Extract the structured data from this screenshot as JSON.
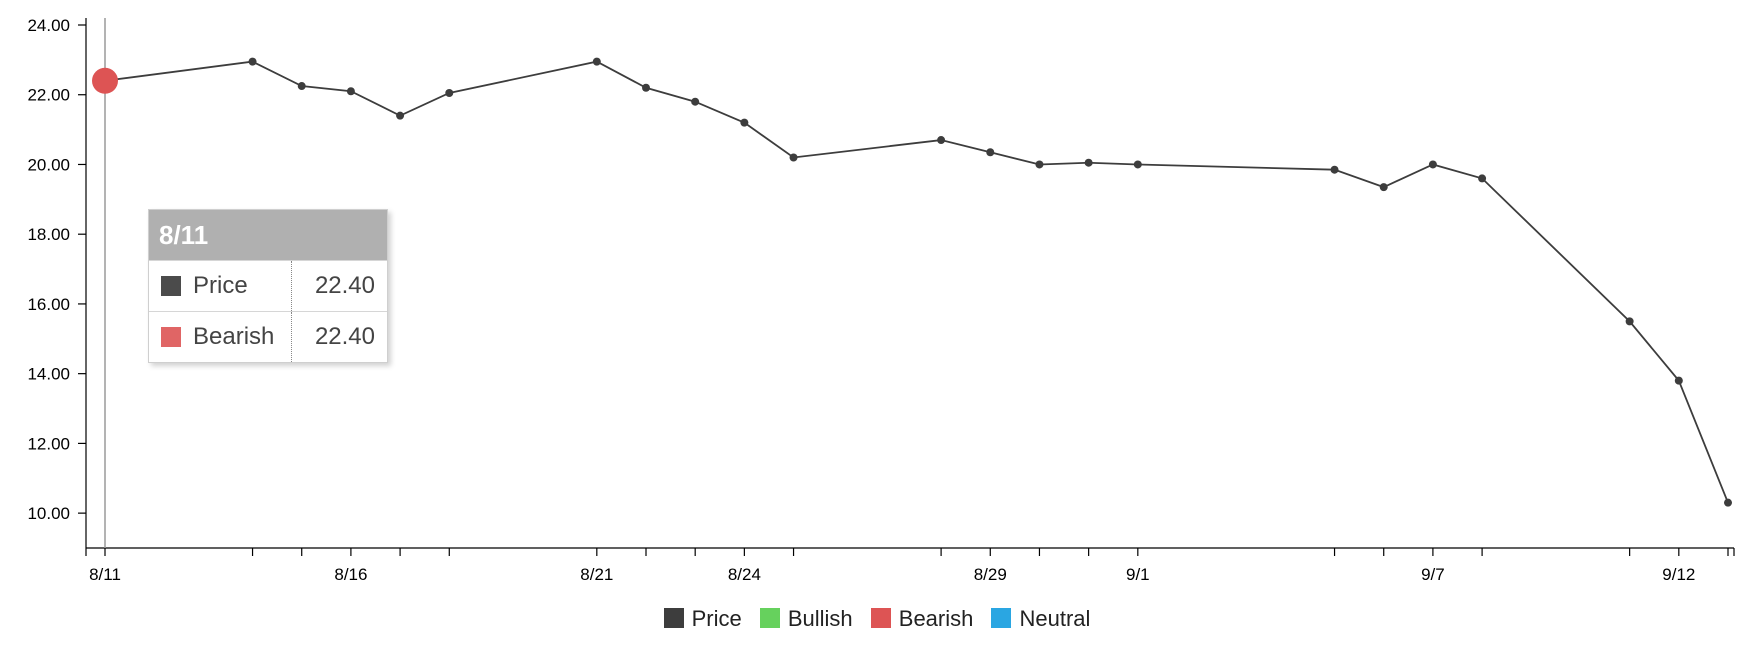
{
  "chart_data": {
    "type": "line",
    "x_labels": [
      "8/11",
      "8/16",
      "8/21",
      "8/24",
      "8/29",
      "9/1",
      "9/7",
      "9/12"
    ],
    "y_tick_labels": [
      "10.00",
      "12.00",
      "14.00",
      "16.00",
      "18.00",
      "20.00",
      "22.00",
      "24.00"
    ],
    "ylim": [
      9,
      24.2
    ],
    "xlim": [
      "8/11",
      "9/13"
    ],
    "x_tick_dates": [
      "8/11",
      "8/14",
      "8/15",
      "8/16",
      "8/17",
      "8/18",
      "8/21",
      "8/22",
      "8/23",
      "8/24",
      "8/25",
      "8/28",
      "8/29",
      "8/30",
      "8/31",
      "9/1",
      "9/5",
      "9/6",
      "9/7",
      "9/8",
      "9/11",
      "9/12",
      "9/13"
    ],
    "series": [
      {
        "name": "Price",
        "color": "#3d3d3d",
        "points": [
          {
            "x": "8/11",
            "y": 22.4
          },
          {
            "x": "8/14",
            "y": 22.95
          },
          {
            "x": "8/15",
            "y": 22.25
          },
          {
            "x": "8/16",
            "y": 22.1
          },
          {
            "x": "8/17",
            "y": 21.4
          },
          {
            "x": "8/18",
            "y": 22.05
          },
          {
            "x": "8/21",
            "y": 22.95
          },
          {
            "x": "8/22",
            "y": 22.2
          },
          {
            "x": "8/23",
            "y": 21.8
          },
          {
            "x": "8/24",
            "y": 21.2
          },
          {
            "x": "8/25",
            "y": 20.2
          },
          {
            "x": "8/28",
            "y": 20.7
          },
          {
            "x": "8/29",
            "y": 20.35
          },
          {
            "x": "8/30",
            "y": 20.0
          },
          {
            "x": "8/31",
            "y": 20.05
          },
          {
            "x": "9/1",
            "y": 20.0
          },
          {
            "x": "9/5",
            "y": 19.85
          },
          {
            "x": "9/6",
            "y": 19.35
          },
          {
            "x": "9/7",
            "y": 20.0
          },
          {
            "x": "9/8",
            "y": 19.6
          },
          {
            "x": "9/11",
            "y": 15.5
          },
          {
            "x": "9/12",
            "y": 13.8
          },
          {
            "x": "9/13",
            "y": 10.3
          }
        ]
      },
      {
        "name": "Bullish",
        "color": "#66d15d",
        "points": []
      },
      {
        "name": "Bearish",
        "color": "#dd5454",
        "points": [
          {
            "x": "8/11",
            "y": 22.4
          }
        ]
      },
      {
        "name": "Neutral",
        "color": "#2aa6e2",
        "points": []
      }
    ],
    "legend": {
      "position": "bottom-center"
    },
    "grid": false,
    "tooltip": {
      "title": "8/11",
      "rows": [
        {
          "name": "Price",
          "value": "22.40",
          "color": "#4b4b4b"
        },
        {
          "name": "Bearish",
          "value": "22.40",
          "color": "#e06565"
        }
      ]
    }
  }
}
